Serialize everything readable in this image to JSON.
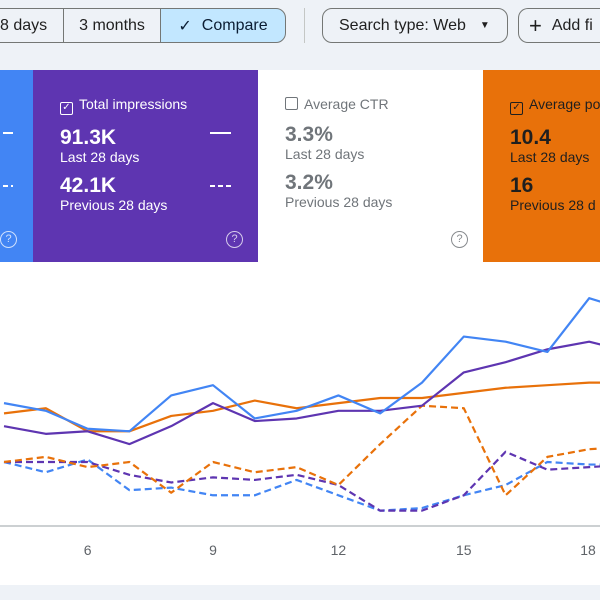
{
  "toolbar": {
    "range_28": "8 days",
    "range_3m": "3 months",
    "compare": "Compare",
    "check_icon": "✓",
    "search_type": "Search type: Web",
    "add_filter": "Add fi"
  },
  "cards": {
    "impressions": {
      "label": "Total impressions",
      "current": "91.3K",
      "current_label": "Last 28 days",
      "previous": "42.1K",
      "previous_label": "Previous 28 days",
      "checked": true,
      "color": "#5e35b1"
    },
    "ctr": {
      "label": "Average CTR",
      "current": "3.3%",
      "current_label": "Last 28 days",
      "previous": "3.2%",
      "previous_label": "Previous 28 days",
      "checked": false
    },
    "position": {
      "label": "Average po",
      "current": "10.4",
      "current_label": "Last 28 days",
      "previous": "16",
      "previous_label": "Previous 28 d",
      "checked": true,
      "color": "#e8710a"
    },
    "clicks": {
      "checked": true,
      "color": "#4285f4"
    },
    "help": "?"
  },
  "chart_data": {
    "type": "line",
    "x": [
      4,
      5,
      6,
      7,
      8,
      9,
      10,
      11,
      12,
      13,
      14,
      15,
      16,
      17,
      18,
      19
    ],
    "xticks": [
      "6",
      "9",
      "12",
      "15",
      "18"
    ],
    "ylim": [
      0,
      100
    ],
    "grid": false,
    "series": [
      {
        "key": "clicks",
        "style": "solid",
        "color": "#4285f4",
        "values": [
          48,
          45,
          38,
          37,
          51,
          55,
          42,
          45,
          51,
          44,
          56,
          74,
          72,
          68,
          89,
          84
        ]
      },
      {
        "key": "impressions",
        "style": "solid",
        "color": "#5e35b1",
        "values": [
          39,
          36,
          37,
          32,
          39,
          48,
          41,
          42,
          45,
          45,
          47,
          60,
          64,
          69,
          72,
          68
        ]
      },
      {
        "key": "position",
        "style": "solid",
        "color": "#e8710a",
        "values": [
          44,
          46,
          37,
          37,
          43,
          45,
          49,
          46,
          48,
          50,
          50,
          52,
          54,
          55,
          56,
          56
        ]
      },
      {
        "key": "position_prev",
        "style": "dashed",
        "color": "#e8710a",
        "values": [
          25,
          27,
          23,
          25,
          13,
          25,
          21,
          23,
          16,
          32,
          47,
          46,
          12,
          27,
          30,
          31
        ]
      },
      {
        "key": "impressions_prev",
        "style": "dashed",
        "color": "#5e35b1",
        "values": [
          25,
          25,
          25,
          20,
          17,
          19,
          18,
          20,
          16,
          6,
          6,
          12,
          29,
          22,
          23,
          24
        ]
      },
      {
        "key": "clicks_prev",
        "style": "dashed",
        "color": "#4285f4",
        "values": [
          25,
          21,
          26,
          14,
          15,
          12,
          12,
          18,
          12,
          6,
          7,
          12,
          16,
          25,
          24,
          24
        ]
      }
    ]
  }
}
